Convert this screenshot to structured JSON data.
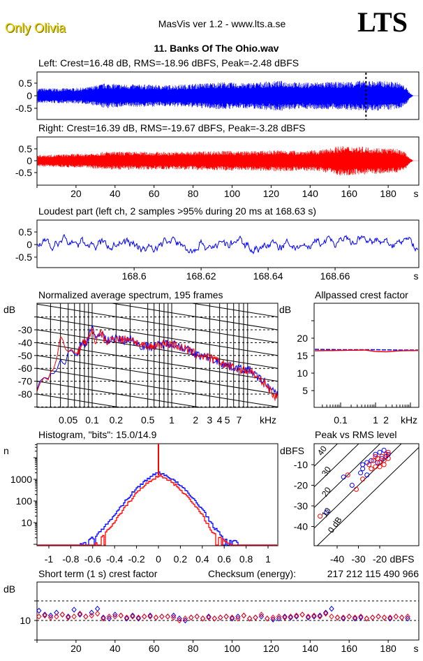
{
  "header": {
    "album": "Only Olivia",
    "app_title": "MasVis ver 1.2 - www.lts.a.se",
    "logo": "LTS",
    "file_title": "11. Banks Of The Ohio.wav"
  },
  "colors": {
    "left": "#0000ff",
    "right": "#ff0000",
    "axis": "#000000"
  },
  "chart_data": [
    {
      "type": "line",
      "id": "left_waveform",
      "title": "Left: Crest=16.48 dB, RMS=-18.96 dBFS, Peak=-2.48 dBFS",
      "yticks": [
        "0.5",
        "0",
        "-0.5"
      ],
      "marker_s": 168.63,
      "envelope_seconds_step": 10,
      "envelope_peak": [
        0.3,
        0.3,
        0.33,
        0.5,
        0.45,
        0.45,
        0.42,
        0.45,
        0.5,
        0.55,
        0.5,
        0.55,
        0.6,
        0.52,
        0.55,
        0.55,
        0.6,
        0.6,
        0.55,
        0.1
      ],
      "duration_s": 193
    },
    {
      "type": "line",
      "id": "right_waveform",
      "title": "Right: Crest=16.39 dB, RMS=-19.67 dBFS, Peak=-3.28 dBFS",
      "yticks": [
        "0.5",
        "0",
        "-0.5"
      ],
      "xticks": [
        "20",
        "40",
        "60",
        "80",
        "100",
        "120",
        "140",
        "160",
        "180"
      ],
      "xunit": "s",
      "envelope_seconds_step": 10,
      "envelope_peak": [
        0.25,
        0.28,
        0.3,
        0.38,
        0.38,
        0.38,
        0.37,
        0.38,
        0.4,
        0.42,
        0.4,
        0.42,
        0.45,
        0.42,
        0.45,
        0.62,
        0.6,
        0.55,
        0.5,
        0.1
      ],
      "duration_s": 193
    },
    {
      "type": "line",
      "id": "loudest_part",
      "title": "Loudest part (left  ch, 2 samples >95% during 20 ms at 168.63 s)",
      "yticks": [
        "0.5",
        "0",
        "-0.5"
      ],
      "xticks": [
        "168.6",
        "168.62",
        "168.64",
        "168.66"
      ],
      "xunit": "s",
      "xlim": [
        168.571,
        168.685
      ]
    },
    {
      "type": "line",
      "id": "spectrum",
      "title": "Normalized average spectrum, 195 frames",
      "ylabel": "dB",
      "yticks": [
        "-30",
        "-40",
        "-50",
        "-60",
        "-70",
        "-80"
      ],
      "xticks": [
        "0.05",
        "0.1",
        "0.2",
        "0.5",
        "1",
        "2",
        "3",
        "4",
        "5",
        "7"
      ],
      "xunit": "kHz",
      "xscale": "log",
      "xlim": [
        0.02,
        20
      ],
      "grid": true,
      "series": [
        {
          "channel": "left",
          "points": [
            [
              0.02,
              -78
            ],
            [
              0.022,
              -70
            ],
            [
              0.025,
              -67
            ],
            [
              0.028,
              -68
            ],
            [
              0.03,
              -64
            ],
            [
              0.033,
              -64
            ],
            [
              0.036,
              -61
            ],
            [
              0.04,
              -53
            ],
            [
              0.043,
              -56
            ],
            [
              0.046,
              -57
            ],
            [
              0.05,
              -47
            ],
            [
              0.055,
              -46
            ],
            [
              0.06,
              -49
            ],
            [
              0.065,
              -49
            ],
            [
              0.07,
              -44
            ],
            [
              0.075,
              -40
            ],
            [
              0.08,
              -42
            ],
            [
              0.09,
              -36
            ],
            [
              0.1,
              -25
            ],
            [
              0.11,
              -39
            ],
            [
              0.13,
              -30
            ],
            [
              0.15,
              -39
            ],
            [
              0.17,
              -37
            ],
            [
              0.2,
              -37
            ],
            [
              0.25,
              -38
            ],
            [
              0.3,
              -37
            ],
            [
              0.4,
              -42
            ],
            [
              0.5,
              -43
            ],
            [
              0.7,
              -42
            ],
            [
              1,
              -40
            ],
            [
              1.5,
              -45
            ],
            [
              2,
              -49
            ],
            [
              3,
              -52
            ],
            [
              4,
              -55
            ],
            [
              5,
              -58
            ],
            [
              7,
              -60
            ],
            [
              10,
              -62
            ],
            [
              12,
              -67
            ],
            [
              15,
              -71
            ],
            [
              20,
              -80
            ]
          ]
        },
        {
          "channel": "right",
          "points": [
            [
              0.02,
              -79
            ],
            [
              0.022,
              -72
            ],
            [
              0.025,
              -67
            ],
            [
              0.028,
              -69
            ],
            [
              0.03,
              -63
            ],
            [
              0.033,
              -60
            ],
            [
              0.036,
              -52
            ],
            [
              0.04,
              -35
            ],
            [
              0.043,
              -38
            ],
            [
              0.046,
              -45
            ],
            [
              0.05,
              -47
            ],
            [
              0.055,
              -45
            ],
            [
              0.06,
              -48
            ],
            [
              0.065,
              -48
            ],
            [
              0.07,
              -45
            ],
            [
              0.075,
              -40
            ],
            [
              0.08,
              -40
            ],
            [
              0.09,
              -38
            ],
            [
              0.1,
              -28
            ],
            [
              0.11,
              -40
            ],
            [
              0.13,
              -32
            ],
            [
              0.15,
              -40
            ],
            [
              0.17,
              -38
            ],
            [
              0.2,
              -36
            ],
            [
              0.25,
              -38
            ],
            [
              0.3,
              -36
            ],
            [
              0.4,
              -42
            ],
            [
              0.5,
              -44
            ],
            [
              0.7,
              -41
            ],
            [
              1,
              -41
            ],
            [
              1.5,
              -45
            ],
            [
              2,
              -49
            ],
            [
              3,
              -52
            ],
            [
              4,
              -55
            ],
            [
              5,
              -58
            ],
            [
              7,
              -61
            ],
            [
              10,
              -62
            ],
            [
              12,
              -68
            ],
            [
              15,
              -72
            ],
            [
              20,
              -82
            ]
          ]
        }
      ]
    },
    {
      "type": "line",
      "id": "allpassed_crest",
      "title": "Allpassed crest factor",
      "ylabel": "dB",
      "yticks": [
        "20",
        "15",
        "10",
        "5"
      ],
      "xticks": [
        "0.1",
        "1",
        "2"
      ],
      "xunit": "kHz",
      "xscale": "log",
      "series": [
        {
          "channel": "left",
          "points": [
            [
              0.02,
              16.8
            ],
            [
              0.1,
              16.7
            ],
            [
              1,
              16.7
            ],
            [
              5,
              16.6
            ],
            [
              20,
              16.6
            ]
          ]
        },
        {
          "channel": "right",
          "points": [
            [
              0.02,
              16.4
            ],
            [
              0.5,
              16.6
            ],
            [
              1,
              16.2
            ],
            [
              2,
              16.1
            ],
            [
              5,
              16.4
            ],
            [
              20,
              16.5
            ]
          ]
        }
      ]
    },
    {
      "type": "line",
      "id": "histogram",
      "title": "Histogram, \"bits\": 15.0/14.9",
      "ylabel": "n",
      "yscale": "log",
      "yticks": [
        "1000",
        "100",
        "10"
      ],
      "xticks": [
        "-1",
        "-0.8",
        "-0.6",
        "-0.4",
        "-0.2",
        "0",
        "0.2",
        "0.4",
        "0.6",
        "0.8",
        "1"
      ],
      "series": [
        {
          "channel": "left",
          "points": [
            [
              -0.72,
              1
            ],
            [
              -0.6,
              2
            ],
            [
              -0.5,
              6
            ],
            [
              -0.4,
              25
            ],
            [
              -0.3,
              110
            ],
            [
              -0.2,
              400
            ],
            [
              -0.1,
              1100
            ],
            [
              0,
              2200
            ],
            [
              0.1,
              1200
            ],
            [
              0.2,
              500
            ],
            [
              0.3,
              150
            ],
            [
              0.4,
              40
            ],
            [
              0.5,
              6
            ],
            [
              0.6,
              2
            ],
            [
              0.76,
              1
            ]
          ]
        },
        {
          "channel": "right",
          "points": [
            [
              -0.6,
              1
            ],
            [
              -0.5,
              3
            ],
            [
              -0.4,
              12
            ],
            [
              -0.3,
              60
            ],
            [
              -0.2,
              250
            ],
            [
              -0.1,
              750
            ],
            [
              0,
              1500
            ],
            [
              0.1,
              900
            ],
            [
              0.2,
              330
            ],
            [
              0.3,
              90
            ],
            [
              0.4,
              20
            ],
            [
              0.5,
              3
            ],
            [
              0.65,
              1
            ]
          ],
          "spike_at_zero": true
        }
      ]
    },
    {
      "type": "scatter",
      "id": "peak_vs_rms",
      "title": "Peak vs RMS level",
      "ylabel": "dBFS",
      "xlabel": "dBFS",
      "yticks": [
        "-10",
        "-20",
        "-30",
        "-40"
      ],
      "xticks": [
        "-40",
        "-30",
        "-20"
      ],
      "crest_lines": [
        "40",
        "30",
        "20",
        "10",
        "0 dB"
      ],
      "series": [
        {
          "channel": "left",
          "points": [
            [
              -45,
              -33
            ],
            [
              -37,
              -16
            ],
            [
              -33,
              -20
            ],
            [
              -29,
              -14
            ],
            [
              -28,
              -12
            ],
            [
              -28,
              -10
            ],
            [
              -26,
              -15
            ],
            [
              -26,
              -9
            ],
            [
              -24,
              -8
            ],
            [
              -22,
              -5
            ],
            [
              -20,
              -4
            ],
            [
              -18,
              -3
            ],
            [
              -16,
              -5
            ],
            [
              -19,
              -7
            ],
            [
              -21,
              -9
            ],
            [
              -17,
              -6
            ]
          ]
        },
        {
          "channel": "right",
          "points": [
            [
              -48,
              -35
            ],
            [
              -35,
              -15
            ],
            [
              -31,
              -22
            ],
            [
              -28,
              -17
            ],
            [
              -25,
              -10
            ],
            [
              -24,
              -12
            ],
            [
              -23,
              -8
            ],
            [
              -22,
              -11
            ],
            [
              -21,
              -7
            ],
            [
              -20,
              -9
            ],
            [
              -19,
              -6
            ],
            [
              -18,
              -8
            ],
            [
              -17,
              -5
            ],
            [
              -16,
              -4
            ],
            [
              -20,
              -11
            ],
            [
              -22,
              -6
            ],
            [
              -18,
              -10
            ],
            [
              -16,
              -7
            ]
          ]
        }
      ]
    },
    {
      "type": "scatter",
      "id": "short_term_crest",
      "title": "Short term (1 s) crest factor",
      "checksum_label": "Checksum (energy):",
      "checksum": "217 212 115 490 966",
      "ylabel": "dB",
      "yticks": [
        "10"
      ],
      "xticks": [
        "20",
        "40",
        "60",
        "80",
        "100",
        "120",
        "140",
        "160",
        "180"
      ],
      "xunit": "s",
      "x_start_s": 1,
      "x_step_s": 3,
      "series": [
        {
          "channel": "left",
          "values": [
            15,
            13,
            12.5,
            14,
            13,
            12,
            15.5,
            13,
            12,
            14,
            16,
            11.5,
            11,
            13,
            12.5,
            11,
            12.5,
            11,
            12,
            12.5,
            11.5,
            12,
            12,
            12.5,
            11,
            10,
            11.5,
            12,
            11,
            12,
            11,
            11.5,
            12,
            11,
            12,
            12.5,
            11,
            11.5,
            12,
            11,
            10.5,
            11,
            12,
            11.5,
            12,
            13,
            11.5,
            12,
            12.5,
            14,
            16,
            11.5,
            11,
            12,
            11,
            11.5,
            11,
            11.5,
            12,
            11.5,
            11,
            12,
            11.5,
            11
          ]
        },
        {
          "channel": "right",
          "values": [
            12,
            12.5,
            11.5,
            12,
            13,
            11.5,
            12,
            13.5,
            12,
            12.5,
            13.5,
            11,
            12,
            12,
            12.5,
            11.5,
            12,
            11.5,
            12,
            12,
            11.5,
            12,
            12,
            11.5,
            10,
            11,
            11.5,
            12,
            11,
            11.5,
            11,
            11.5,
            12,
            11.5,
            11,
            12.5,
            11,
            11.5,
            13,
            11,
            11.5,
            12,
            11.5,
            12,
            12.5,
            13,
            12,
            12.5,
            12,
            13.5,
            12,
            11.5,
            11.5,
            12,
            11.5,
            12,
            11,
            11.5,
            12,
            11.5,
            11.5,
            12,
            11.5,
            12
          ]
        }
      ]
    }
  ]
}
